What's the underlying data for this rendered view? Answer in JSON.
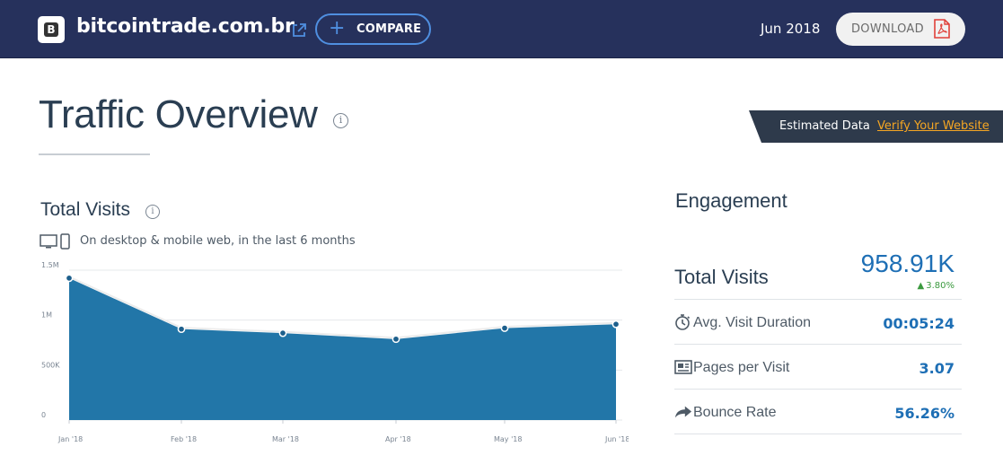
{
  "header": {
    "site_name": "bitcointrade.com.br",
    "logo_letter": "B",
    "compare_label": "COMPARE",
    "date": "Jun 2018",
    "download_label": "DOWNLOAD",
    "background_color": "#26315c",
    "accent_color": "#4f8fe0"
  },
  "overview": {
    "title": "Traffic Overview",
    "info_glyph": "i",
    "estimated_label": "Estimated Data",
    "verify_link": "Verify Your Website"
  },
  "total_visits": {
    "title": "Total Visits",
    "info_glyph": "i",
    "subtitle": "On desktop & mobile web, in the last 6 months"
  },
  "chart_data": {
    "type": "area",
    "categories": [
      "Jan '18",
      "Feb '18",
      "Mar '18",
      "Apr '18",
      "May '18",
      "Jun '18"
    ],
    "values": [
      1420000,
      910000,
      870000,
      810000,
      920000,
      958910
    ],
    "y_ticks": [
      {
        "value": 0,
        "label": "0"
      },
      {
        "value": 500000,
        "label": "500K"
      },
      {
        "value": 1000000,
        "label": "1M"
      },
      {
        "value": 1500000,
        "label": "1.5M"
      }
    ],
    "ylim": [
      0,
      1500000
    ],
    "grid": true,
    "fill_color": "#2276a8",
    "line_color": "#ececec"
  },
  "engagement": {
    "title": "Engagement",
    "total_visits_label": "Total Visits",
    "total_visits_value": "958.91K",
    "total_visits_change": "3.80%",
    "change_color": "#3b9a3f",
    "rows": [
      {
        "label": "Avg. Visit Duration",
        "value": "00:05:24",
        "icon": "stopwatch-icon"
      },
      {
        "label": "Pages per Visit",
        "value": "3.07",
        "icon": "pages-icon"
      },
      {
        "label": "Bounce Rate",
        "value": "56.26%",
        "icon": "bounce-arrow-icon"
      }
    ],
    "value_color": "#1e6fb5"
  }
}
